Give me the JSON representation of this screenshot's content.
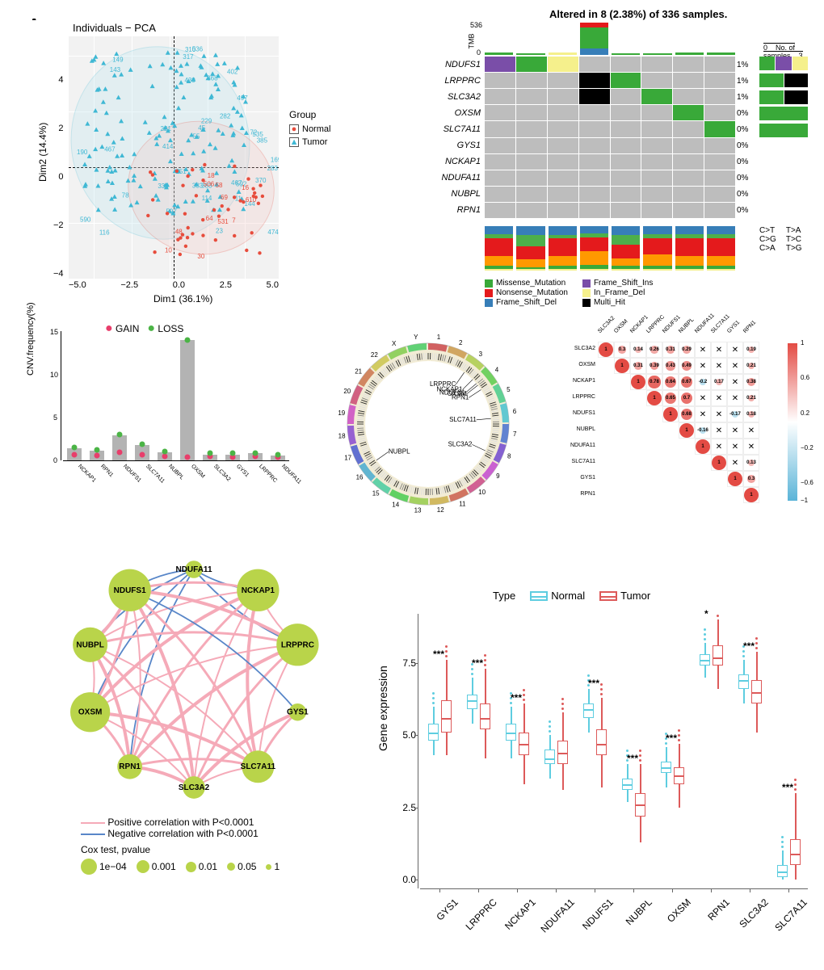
{
  "colors": {
    "normal": "#e74c3c",
    "tumor": "#3fb8d4",
    "tumor_fill": "#b3e3ef",
    "normal_fill": "#f4c3bf",
    "missense": "#39a939",
    "nonsense": "#e41a1c",
    "fs_del": "#377eb8",
    "fs_ins": "#7a4ea8",
    "inframe_del": "#f5f08c",
    "multi_hit": "#000000",
    "ct": "#e41a1c",
    "cg": "#377eb8",
    "ca": "#4daf4a",
    "ta": "#39a939",
    "tc": "#ff9900",
    "tg": "#f5f08c",
    "grey_cell": "#bdbdbd",
    "gain": "#e83e6b",
    "loss": "#4bb446",
    "pos_corr": "#e34b44",
    "neg_corr": "#5ab4d8",
    "net_node": "#b9d44a",
    "net_pos": "#f5aab8",
    "net_neg": "#5886c8",
    "box_normal": "#5ecde0",
    "box_tumor": "#dd5a5a"
  },
  "panelA": {
    "title": "Individuals − PCA",
    "xlabel": "Dim1 (36.1%)",
    "ylabel": "Dim2 (14.4%)",
    "legend_title": "Group",
    "legend_items": [
      "Normal",
      "Tumor"
    ]
  },
  "panelB": {
    "title": "Altered in 8 (2.38%) of 336 samples.",
    "tmb_label": "TMB",
    "tmb_max": "536",
    "tmb_min": "0",
    "no_samples_label": "No. of samples",
    "no_samples_max": "3",
    "genes": [
      "NDUFS1",
      "LRPPRC",
      "SLC3A2",
      "OXSM",
      "SLC7A11",
      "GYS1",
      "NCKAP1",
      "NDUFA11",
      "NUBPL",
      "RPN1"
    ],
    "pct": [
      "1%",
      "1%",
      "1%",
      "0%",
      "0%",
      "0%",
      "0%",
      "0%",
      "0%",
      "0%"
    ],
    "mut_legend": [
      [
        "Missense_Mutation",
        "missense"
      ],
      [
        "Nonsense_Mutation",
        "nonsense"
      ],
      [
        "Frame_Shift_Del",
        "fs_del"
      ],
      [
        "Frame_Shift_Ins",
        "fs_ins"
      ],
      [
        "In_Frame_Del",
        "inframe_del"
      ],
      [
        "Multi_Hit",
        "multi_hit"
      ]
    ],
    "subst_legend": [
      [
        "C>T",
        "ct"
      ],
      [
        "C>G",
        "cg"
      ],
      [
        "C>A",
        "ca"
      ],
      [
        "T>A",
        "ta"
      ],
      [
        "T>C",
        "tc"
      ],
      [
        "T>G",
        "tg"
      ]
    ],
    "tmb_bars": [
      {
        "h": 8,
        "segs": [
          [
            "missense",
            100
          ]
        ]
      },
      {
        "h": 6,
        "segs": [
          [
            "missense",
            100
          ]
        ]
      },
      {
        "h": 7,
        "segs": [
          [
            "inframe_del",
            100
          ]
        ]
      },
      {
        "h": 100,
        "segs": [
          [
            "fs_del",
            20
          ],
          [
            "missense",
            65
          ],
          [
            "nonsense",
            15
          ]
        ]
      },
      {
        "h": 6,
        "segs": [
          [
            "missense",
            100
          ]
        ]
      },
      {
        "h": 6,
        "segs": [
          [
            "missense",
            100
          ]
        ]
      },
      {
        "h": 8,
        "segs": [
          [
            "missense",
            100
          ]
        ]
      },
      {
        "h": 7,
        "segs": [
          [
            "missense",
            100
          ]
        ]
      }
    ],
    "onco_cells": {
      "0": {
        "0": "fs_ins",
        "1": "missense",
        "2": "inframe_del"
      },
      "1": {
        "3": "multi_hit",
        "4": "missense"
      },
      "2": {
        "3": "multi_hit",
        "5": "missense"
      },
      "3": {
        "6": "missense"
      },
      "4": {
        "7": "missense"
      }
    },
    "side_bars": [
      [
        [
          "missense",
          1
        ],
        [
          "fs_ins",
          1
        ],
        [
          "inframe_del",
          1
        ]
      ],
      [
        [
          "missense",
          1
        ],
        [
          "multi_hit",
          1
        ]
      ],
      [
        [
          "missense",
          1
        ],
        [
          "multi_hit",
          1
        ]
      ],
      [
        [
          "missense",
          1
        ]
      ],
      [
        [
          "missense",
          1
        ]
      ]
    ],
    "stacked_profile": [
      [
        [
          "cg",
          18
        ],
        [
          "ca",
          10
        ],
        [
          "ct",
          40
        ],
        [
          "tc",
          22
        ],
        [
          "ta",
          6
        ],
        [
          "tg",
          4
        ]
      ],
      [
        [
          "cg",
          20
        ],
        [
          "ca",
          26
        ],
        [
          "ct",
          28
        ],
        [
          "tc",
          18
        ],
        [
          "ta",
          5
        ],
        [
          "tg",
          3
        ]
      ],
      [
        [
          "cg",
          20
        ],
        [
          "ca",
          8
        ],
        [
          "ct",
          40
        ],
        [
          "tc",
          22
        ],
        [
          "ta",
          6
        ],
        [
          "tg",
          4
        ]
      ],
      [
        [
          "cg",
          16
        ],
        [
          "ca",
          10
        ],
        [
          "ct",
          30
        ],
        [
          "tc",
          32
        ],
        [
          "ta",
          8
        ],
        [
          "tg",
          4
        ]
      ],
      [
        [
          "cg",
          20
        ],
        [
          "ca",
          22
        ],
        [
          "ct",
          30
        ],
        [
          "tc",
          18
        ],
        [
          "ta",
          6
        ],
        [
          "tg",
          4
        ]
      ],
      [
        [
          "cg",
          18
        ],
        [
          "ca",
          10
        ],
        [
          "ct",
          36
        ],
        [
          "tc",
          26
        ],
        [
          "ta",
          6
        ],
        [
          "tg",
          4
        ]
      ],
      [
        [
          "cg",
          18
        ],
        [
          "ca",
          10
        ],
        [
          "ct",
          40
        ],
        [
          "tc",
          22
        ],
        [
          "ta",
          6
        ],
        [
          "tg",
          4
        ]
      ],
      [
        [
          "cg",
          18
        ],
        [
          "ca",
          10
        ],
        [
          "ct",
          40
        ],
        [
          "tc",
          22
        ],
        [
          "ta",
          6
        ],
        [
          "tg",
          4
        ]
      ]
    ]
  },
  "panelC": {
    "ylabel": "CNV.frequency(%)",
    "legend": [
      "GAIN",
      "LOSS"
    ],
    "yticks": [
      "0",
      "5",
      "10",
      "15"
    ],
    "genes": [
      "NCKAP1",
      "RPN1",
      "NDUFS1",
      "SLC7A11",
      "NUBPL",
      "OXSM",
      "SLC3A2",
      "GYS1",
      "LRPPRC",
      "NDUFA11"
    ],
    "bars": [
      {
        "bar": 1.4,
        "gain": 0.7,
        "loss": 1.5
      },
      {
        "bar": 1.1,
        "gain": 0.6,
        "loss": 1.2
      },
      {
        "bar": 2.9,
        "gain": 0.9,
        "loss": 3.0
      },
      {
        "bar": 1.8,
        "gain": 0.7,
        "loss": 1.9
      },
      {
        "bar": 0.9,
        "gain": 0.5,
        "loss": 1.0
      },
      {
        "bar": 14.0,
        "gain": 0.4,
        "loss": 14.0
      },
      {
        "bar": 0.7,
        "gain": 0.5,
        "loss": 0.8
      },
      {
        "bar": 0.7,
        "gain": 0.4,
        "loss": 0.8
      },
      {
        "bar": 0.8,
        "gain": 0.5,
        "loss": 0.8
      },
      {
        "bar": 0.6,
        "gain": 0.4,
        "loss": 0.7
      }
    ]
  },
  "panelD": {
    "gene_labels": [
      "LRPPRC",
      "NCKAP1",
      "NDUFS1",
      "OXSM",
      "RPN1",
      "SLC7A11",
      "SLC3A2",
      "NUBPL"
    ]
  },
  "panelE": {
    "genes": [
      "SLC3A2",
      "OXSM",
      "NCKAP1",
      "LRPPRC",
      "NDUFS1",
      "NUBPL",
      "NDUFA11",
      "SLC7A11",
      "GYS1",
      "RPN1"
    ],
    "matrix": [
      [
        1,
        0.3,
        0.14,
        0.26,
        0.31,
        0.29,
        0,
        0,
        0,
        0.19
      ],
      [
        null,
        1,
        0.31,
        0.39,
        0.43,
        0.49,
        0,
        0,
        0,
        0.21
      ],
      [
        null,
        null,
        1,
        0.78,
        0.64,
        0.67,
        -0.2,
        0.17,
        0,
        0.38
      ],
      [
        null,
        null,
        null,
        1,
        0.65,
        0.7,
        0,
        0,
        0,
        0.21
      ],
      [
        null,
        null,
        null,
        null,
        1,
        0.68,
        0,
        0,
        -0.17,
        0.18
      ],
      [
        null,
        null,
        null,
        null,
        null,
        1,
        -0.16,
        0,
        0,
        0
      ],
      [
        null,
        null,
        null,
        null,
        null,
        null,
        1,
        0,
        0,
        0
      ],
      [
        null,
        null,
        null,
        null,
        null,
        null,
        null,
        1,
        0,
        0.13
      ],
      [
        null,
        null,
        null,
        null,
        null,
        null,
        null,
        null,
        1,
        0.3
      ],
      [
        null,
        null,
        null,
        null,
        null,
        null,
        null,
        null,
        null,
        1
      ]
    ]
  },
  "panelF": {
    "nodes": [
      {
        "name": "NDUFA11",
        "angle": 90,
        "size": 14
      },
      {
        "name": "NCKAP1",
        "angle": 54,
        "size": 34
      },
      {
        "name": "LRPPRC",
        "angle": 18,
        "size": 34
      },
      {
        "name": "GYS1",
        "angle": -18,
        "size": 14
      },
      {
        "name": "SLC7A11",
        "angle": -54,
        "size": 26
      },
      {
        "name": "SLC3A2",
        "angle": -90,
        "size": 18
      },
      {
        "name": "RPN1",
        "angle": -126,
        "size": 20
      },
      {
        "name": "OXSM",
        "angle": -162,
        "size": 32
      },
      {
        "name": "NUBPL",
        "angle": 162,
        "size": 28
      },
      {
        "name": "NDUFS1",
        "angle": 126,
        "size": 34
      }
    ],
    "legend_pos": "Positive correlation with P<0.0001",
    "legend_neg": "Negative correlation with P<0.0001",
    "legend_cox": "Cox test, pvalue",
    "cox_ticks": [
      "1e−04",
      "0.001",
      "0.01",
      "0.05",
      "1"
    ]
  },
  "panelG": {
    "legend_title": "Type",
    "legend_items": [
      "Normal",
      "Tumor"
    ],
    "ylabel": "Gene expression",
    "yticks": [
      "0.0",
      "2.5",
      "5.0",
      "7.5"
    ],
    "genes": [
      "GYS1",
      "LRPPRC",
      "NCKAP1",
      "NDUFA11",
      "NDUFS1",
      "NUBPL",
      "OXSM",
      "RPN1",
      "SLC3A2",
      "SLC7A11"
    ],
    "sig": [
      "***",
      "***",
      "***",
      "",
      "***",
      "***",
      "***",
      "*",
      "***",
      "***"
    ],
    "boxes": [
      {
        "n": {
          "q1": 4.8,
          "med": 5.1,
          "q3": 5.4,
          "lo": 4.3,
          "hi": 6.0
        },
        "t": {
          "q1": 5.1,
          "med": 5.6,
          "q3": 6.2,
          "lo": 4.3,
          "hi": 7.6
        }
      },
      {
        "n": {
          "q1": 5.9,
          "med": 6.2,
          "q3": 6.4,
          "lo": 5.4,
          "hi": 7.0
        },
        "t": {
          "q1": 5.2,
          "med": 5.6,
          "q3": 6.1,
          "lo": 4.2,
          "hi": 7.3
        }
      },
      {
        "n": {
          "q1": 4.8,
          "med": 5.1,
          "q3": 5.4,
          "lo": 4.2,
          "hi": 6.0
        },
        "t": {
          "q1": 4.3,
          "med": 4.7,
          "q3": 5.1,
          "lo": 3.3,
          "hi": 6.1
        }
      },
      {
        "n": {
          "q1": 4.0,
          "med": 4.2,
          "q3": 4.5,
          "lo": 3.5,
          "hi": 5.0
        },
        "t": {
          "q1": 4.0,
          "med": 4.4,
          "q3": 4.8,
          "lo": 3.1,
          "hi": 5.8
        }
      },
      {
        "n": {
          "q1": 5.6,
          "med": 5.9,
          "q3": 6.1,
          "lo": 5.1,
          "hi": 6.6
        },
        "t": {
          "q1": 4.3,
          "med": 4.7,
          "q3": 5.2,
          "lo": 3.2,
          "hi": 6.3
        }
      },
      {
        "n": {
          "q1": 3.1,
          "med": 3.3,
          "q3": 3.5,
          "lo": 2.7,
          "hi": 4.0
        },
        "t": {
          "q1": 2.2,
          "med": 2.6,
          "q3": 3.0,
          "lo": 1.3,
          "hi": 4.0
        }
      },
      {
        "n": {
          "q1": 3.7,
          "med": 3.9,
          "q3": 4.1,
          "lo": 3.2,
          "hi": 4.6
        },
        "t": {
          "q1": 3.3,
          "med": 3.6,
          "q3": 3.9,
          "lo": 2.5,
          "hi": 4.7
        }
      },
      {
        "n": {
          "q1": 7.4,
          "med": 7.6,
          "q3": 7.8,
          "lo": 7.0,
          "hi": 8.2
        },
        "t": {
          "q1": 7.4,
          "med": 7.7,
          "q3": 8.1,
          "lo": 6.6,
          "hi": 9.0
        }
      },
      {
        "n": {
          "q1": 6.6,
          "med": 6.9,
          "q3": 7.1,
          "lo": 6.1,
          "hi": 7.6
        },
        "t": {
          "q1": 6.1,
          "med": 6.5,
          "q3": 6.9,
          "lo": 5.1,
          "hi": 7.9
        }
      },
      {
        "n": {
          "q1": 0.1,
          "med": 0.3,
          "q3": 0.5,
          "lo": 0.0,
          "hi": 1.0
        },
        "t": {
          "q1": 0.5,
          "med": 0.9,
          "q3": 1.4,
          "lo": 0.0,
          "hi": 3.0
        }
      }
    ]
  }
}
